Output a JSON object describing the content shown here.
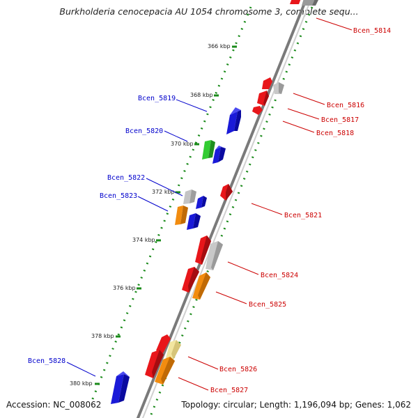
{
  "header": {
    "title": "Burkholderia cenocepacia AU 1054 chromosome 3, complete sequ..."
  },
  "footer": {
    "accession": "Accession: NC_008062",
    "stats": "Topology: circular; Length: 1,196,094 bp; Genes: 1,062"
  },
  "scale_ticks": [
    "366 kbp",
    "368 kbp",
    "370 kbp",
    "372 kbp",
    "374 kbp",
    "376 kbp",
    "378 kbp",
    "380 kbp"
  ],
  "gene_labels": {
    "left": [
      "Bcen_5819",
      "Bcen_5820",
      "Bcen_5822",
      "Bcen_5823",
      "Bcen_5828"
    ],
    "right": [
      "Bcen_5814",
      "Bcen_5816",
      "Bcen_5817",
      "Bcen_5818",
      "Bcen_5821",
      "Bcen_5824",
      "Bcen_5825",
      "Bcen_5826",
      "Bcen_5827"
    ]
  },
  "colors": {
    "forward_label": "#0000cc",
    "reverse_label": "#cc0000",
    "backbone": "#888888",
    "dotted_track": "#1a8a1a",
    "red": "#e8161a",
    "blue": "#1919e6",
    "green": "#33cc33",
    "gray": "#bdbdbd",
    "orange": "#f28c0f",
    "pale": "#f2e6a0"
  }
}
